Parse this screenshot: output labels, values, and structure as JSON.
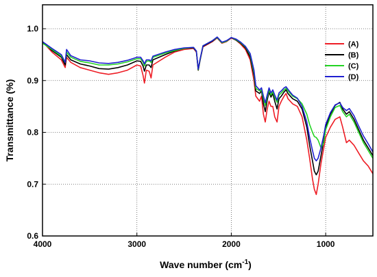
{
  "chart_data": {
    "type": "line",
    "xlabel": "Wave number (cm",
    "xlabel_sup": "-1",
    "xlabel_end": ")",
    "ylabel": "Transmittance (%)",
    "xlim": [
      4000,
      500
    ],
    "ylim": [
      0.6,
      1.05
    ],
    "x_ticks": [
      4000,
      3000,
      2000,
      1000
    ],
    "y_ticks": [
      0.6,
      0.7,
      0.8,
      0.9,
      1.0
    ],
    "x_tick_labels": [
      "4000",
      "3000",
      "2000",
      "1000"
    ],
    "y_tick_labels": [
      "0.6",
      "0.7",
      "0.8",
      "0.9",
      "1.0"
    ],
    "grid": true,
    "grid_style": "dotted",
    "legend_position": "top-right",
    "series": [
      {
        "name": "(A)",
        "color": "#ee1c24",
        "points": [
          [
            4000,
            0.975
          ],
          [
            3900,
            0.955
          ],
          [
            3800,
            0.94
          ],
          [
            3760,
            0.925
          ],
          [
            3745,
            0.945
          ],
          [
            3700,
            0.935
          ],
          [
            3600,
            0.925
          ],
          [
            3500,
            0.92
          ],
          [
            3400,
            0.915
          ],
          [
            3300,
            0.912
          ],
          [
            3200,
            0.915
          ],
          [
            3100,
            0.92
          ],
          [
            3000,
            0.93
          ],
          [
            2960,
            0.928
          ],
          [
            2935,
            0.91
          ],
          [
            2920,
            0.895
          ],
          [
            2900,
            0.92
          ],
          [
            2870,
            0.918
          ],
          [
            2850,
            0.905
          ],
          [
            2830,
            0.93
          ],
          [
            2700,
            0.945
          ],
          [
            2600,
            0.955
          ],
          [
            2500,
            0.96
          ],
          [
            2400,
            0.962
          ],
          [
            2370,
            0.955
          ],
          [
            2350,
            0.92
          ],
          [
            2330,
            0.94
          ],
          [
            2300,
            0.965
          ],
          [
            2200,
            0.975
          ],
          [
            2150,
            0.982
          ],
          [
            2100,
            0.972
          ],
          [
            2050,
            0.975
          ],
          [
            2000,
            0.982
          ],
          [
            1950,
            0.978
          ],
          [
            1900,
            0.97
          ],
          [
            1850,
            0.96
          ],
          [
            1800,
            0.94
          ],
          [
            1760,
            0.9
          ],
          [
            1740,
            0.87
          ],
          [
            1700,
            0.86
          ],
          [
            1680,
            0.87
          ],
          [
            1660,
            0.835
          ],
          [
            1640,
            0.82
          ],
          [
            1620,
            0.845
          ],
          [
            1600,
            0.86
          ],
          [
            1580,
            0.85
          ],
          [
            1560,
            0.85
          ],
          [
            1540,
            0.83
          ],
          [
            1515,
            0.82
          ],
          [
            1495,
            0.85
          ],
          [
            1470,
            0.86
          ],
          [
            1440,
            0.87
          ],
          [
            1420,
            0.875
          ],
          [
            1400,
            0.865
          ],
          [
            1350,
            0.855
          ],
          [
            1300,
            0.85
          ],
          [
            1250,
            0.83
          ],
          [
            1200,
            0.785
          ],
          [
            1170,
            0.75
          ],
          [
            1140,
            0.71
          ],
          [
            1120,
            0.69
          ],
          [
            1100,
            0.68
          ],
          [
            1080,
            0.7
          ],
          [
            1050,
            0.74
          ],
          [
            1020,
            0.77
          ],
          [
            1000,
            0.79
          ],
          [
            950,
            0.81
          ],
          [
            900,
            0.825
          ],
          [
            850,
            0.83
          ],
          [
            820,
            0.81
          ],
          [
            780,
            0.78
          ],
          [
            750,
            0.785
          ],
          [
            700,
            0.775
          ],
          [
            650,
            0.76
          ],
          [
            600,
            0.745
          ],
          [
            550,
            0.735
          ],
          [
            500,
            0.72
          ]
        ]
      },
      {
        "name": "(B)",
        "color": "#000000",
        "points": [
          [
            4000,
            0.975
          ],
          [
            3900,
            0.958
          ],
          [
            3800,
            0.945
          ],
          [
            3760,
            0.93
          ],
          [
            3745,
            0.95
          ],
          [
            3700,
            0.94
          ],
          [
            3600,
            0.932
          ],
          [
            3500,
            0.928
          ],
          [
            3400,
            0.923
          ],
          [
            3300,
            0.922
          ],
          [
            3200,
            0.925
          ],
          [
            3100,
            0.93
          ],
          [
            3000,
            0.938
          ],
          [
            2960,
            0.937
          ],
          [
            2935,
            0.928
          ],
          [
            2920,
            0.918
          ],
          [
            2900,
            0.93
          ],
          [
            2870,
            0.93
          ],
          [
            2850,
            0.925
          ],
          [
            2830,
            0.94
          ],
          [
            2700,
            0.95
          ],
          [
            2600,
            0.957
          ],
          [
            2500,
            0.962
          ],
          [
            2400,
            0.963
          ],
          [
            2370,
            0.956
          ],
          [
            2350,
            0.92
          ],
          [
            2330,
            0.94
          ],
          [
            2300,
            0.966
          ],
          [
            2200,
            0.976
          ],
          [
            2150,
            0.983
          ],
          [
            2100,
            0.973
          ],
          [
            2050,
            0.976
          ],
          [
            2000,
            0.983
          ],
          [
            1950,
            0.978
          ],
          [
            1900,
            0.972
          ],
          [
            1850,
            0.963
          ],
          [
            1800,
            0.945
          ],
          [
            1760,
            0.91
          ],
          [
            1740,
            0.88
          ],
          [
            1700,
            0.875
          ],
          [
            1680,
            0.88
          ],
          [
            1660,
            0.855
          ],
          [
            1640,
            0.84
          ],
          [
            1620,
            0.862
          ],
          [
            1600,
            0.878
          ],
          [
            1580,
            0.868
          ],
          [
            1560,
            0.875
          ],
          [
            1540,
            0.86
          ],
          [
            1515,
            0.845
          ],
          [
            1495,
            0.865
          ],
          [
            1470,
            0.87
          ],
          [
            1440,
            0.878
          ],
          [
            1420,
            0.882
          ],
          [
            1400,
            0.875
          ],
          [
            1350,
            0.865
          ],
          [
            1300,
            0.86
          ],
          [
            1250,
            0.845
          ],
          [
            1200,
            0.81
          ],
          [
            1170,
            0.775
          ],
          [
            1140,
            0.745
          ],
          [
            1120,
            0.725
          ],
          [
            1100,
            0.718
          ],
          [
            1080,
            0.725
          ],
          [
            1050,
            0.755
          ],
          [
            1020,
            0.785
          ],
          [
            1000,
            0.81
          ],
          [
            950,
            0.835
          ],
          [
            900,
            0.852
          ],
          [
            850,
            0.858
          ],
          [
            820,
            0.845
          ],
          [
            780,
            0.835
          ],
          [
            750,
            0.84
          ],
          [
            700,
            0.825
          ],
          [
            650,
            0.805
          ],
          [
            600,
            0.785
          ],
          [
            550,
            0.77
          ],
          [
            500,
            0.755
          ]
        ]
      },
      {
        "name": "(C)",
        "color": "#22d322",
        "points": [
          [
            4000,
            0.972
          ],
          [
            3900,
            0.96
          ],
          [
            3800,
            0.947
          ],
          [
            3760,
            0.935
          ],
          [
            3745,
            0.955
          ],
          [
            3700,
            0.945
          ],
          [
            3600,
            0.937
          ],
          [
            3500,
            0.934
          ],
          [
            3400,
            0.93
          ],
          [
            3300,
            0.93
          ],
          [
            3200,
            0.932
          ],
          [
            3100,
            0.936
          ],
          [
            3000,
            0.942
          ],
          [
            2960,
            0.942
          ],
          [
            2935,
            0.935
          ],
          [
            2920,
            0.928
          ],
          [
            2900,
            0.937
          ],
          [
            2870,
            0.938
          ],
          [
            2850,
            0.935
          ],
          [
            2830,
            0.945
          ],
          [
            2700,
            0.953
          ],
          [
            2600,
            0.958
          ],
          [
            2500,
            0.962
          ],
          [
            2400,
            0.964
          ],
          [
            2370,
            0.957
          ],
          [
            2350,
            0.921
          ],
          [
            2330,
            0.941
          ],
          [
            2300,
            0.967
          ],
          [
            2200,
            0.977
          ],
          [
            2150,
            0.983
          ],
          [
            2100,
            0.973
          ],
          [
            2050,
            0.976
          ],
          [
            2000,
            0.983
          ],
          [
            1950,
            0.979
          ],
          [
            1900,
            0.973
          ],
          [
            1850,
            0.965
          ],
          [
            1800,
            0.95
          ],
          [
            1760,
            0.915
          ],
          [
            1740,
            0.885
          ],
          [
            1700,
            0.88
          ],
          [
            1680,
            0.882
          ],
          [
            1660,
            0.865
          ],
          [
            1640,
            0.852
          ],
          [
            1620,
            0.868
          ],
          [
            1600,
            0.882
          ],
          [
            1580,
            0.872
          ],
          [
            1560,
            0.878
          ],
          [
            1540,
            0.868
          ],
          [
            1515,
            0.858
          ],
          [
            1495,
            0.872
          ],
          [
            1470,
            0.876
          ],
          [
            1440,
            0.882
          ],
          [
            1420,
            0.885
          ],
          [
            1400,
            0.88
          ],
          [
            1350,
            0.87
          ],
          [
            1300,
            0.865
          ],
          [
            1250,
            0.855
          ],
          [
            1200,
            0.835
          ],
          [
            1170,
            0.815
          ],
          [
            1140,
            0.8
          ],
          [
            1120,
            0.792
          ],
          [
            1100,
            0.79
          ],
          [
            1080,
            0.785
          ],
          [
            1050,
            0.77
          ],
          [
            1020,
            0.78
          ],
          [
            1000,
            0.805
          ],
          [
            950,
            0.83
          ],
          [
            900,
            0.848
          ],
          [
            850,
            0.852
          ],
          [
            820,
            0.84
          ],
          [
            780,
            0.83
          ],
          [
            750,
            0.835
          ],
          [
            700,
            0.82
          ],
          [
            650,
            0.8
          ],
          [
            600,
            0.78
          ],
          [
            550,
            0.765
          ],
          [
            500,
            0.75
          ]
        ]
      },
      {
        "name": "(D)",
        "color": "#1e1ed0",
        "points": [
          [
            4000,
            0.975
          ],
          [
            3900,
            0.962
          ],
          [
            3800,
            0.95
          ],
          [
            3760,
            0.935
          ],
          [
            3745,
            0.96
          ],
          [
            3700,
            0.948
          ],
          [
            3600,
            0.94
          ],
          [
            3500,
            0.938
          ],
          [
            3400,
            0.934
          ],
          [
            3300,
            0.933
          ],
          [
            3200,
            0.935
          ],
          [
            3100,
            0.939
          ],
          [
            3000,
            0.945
          ],
          [
            2960,
            0.945
          ],
          [
            2935,
            0.938
          ],
          [
            2920,
            0.932
          ],
          [
            2900,
            0.94
          ],
          [
            2870,
            0.94
          ],
          [
            2850,
            0.938
          ],
          [
            2830,
            0.947
          ],
          [
            2700,
            0.955
          ],
          [
            2600,
            0.96
          ],
          [
            2500,
            0.963
          ],
          [
            2400,
            0.964
          ],
          [
            2370,
            0.957
          ],
          [
            2350,
            0.922
          ],
          [
            2330,
            0.942
          ],
          [
            2300,
            0.967
          ],
          [
            2200,
            0.977
          ],
          [
            2150,
            0.984
          ],
          [
            2100,
            0.974
          ],
          [
            2050,
            0.977
          ],
          [
            2000,
            0.983
          ],
          [
            1950,
            0.98
          ],
          [
            1900,
            0.974
          ],
          [
            1850,
            0.966
          ],
          [
            1800,
            0.952
          ],
          [
            1760,
            0.92
          ],
          [
            1740,
            0.89
          ],
          [
            1700,
            0.882
          ],
          [
            1680,
            0.886
          ],
          [
            1660,
            0.87
          ],
          [
            1640,
            0.857
          ],
          [
            1620,
            0.872
          ],
          [
            1600,
            0.886
          ],
          [
            1580,
            0.876
          ],
          [
            1560,
            0.882
          ],
          [
            1540,
            0.872
          ],
          [
            1515,
            0.862
          ],
          [
            1495,
            0.876
          ],
          [
            1470,
            0.88
          ],
          [
            1440,
            0.886
          ],
          [
            1420,
            0.888
          ],
          [
            1400,
            0.883
          ],
          [
            1350,
            0.872
          ],
          [
            1300,
            0.866
          ],
          [
            1250,
            0.85
          ],
          [
            1200,
            0.82
          ],
          [
            1170,
            0.79
          ],
          [
            1140,
            0.765
          ],
          [
            1120,
            0.75
          ],
          [
            1100,
            0.745
          ],
          [
            1080,
            0.75
          ],
          [
            1050,
            0.77
          ],
          [
            1020,
            0.795
          ],
          [
            1000,
            0.815
          ],
          [
            950,
            0.838
          ],
          [
            900,
            0.853
          ],
          [
            850,
            0.857
          ],
          [
            820,
            0.848
          ],
          [
            780,
            0.842
          ],
          [
            750,
            0.846
          ],
          [
            700,
            0.832
          ],
          [
            650,
            0.812
          ],
          [
            600,
            0.793
          ],
          [
            550,
            0.778
          ],
          [
            500,
            0.762
          ]
        ]
      }
    ]
  }
}
